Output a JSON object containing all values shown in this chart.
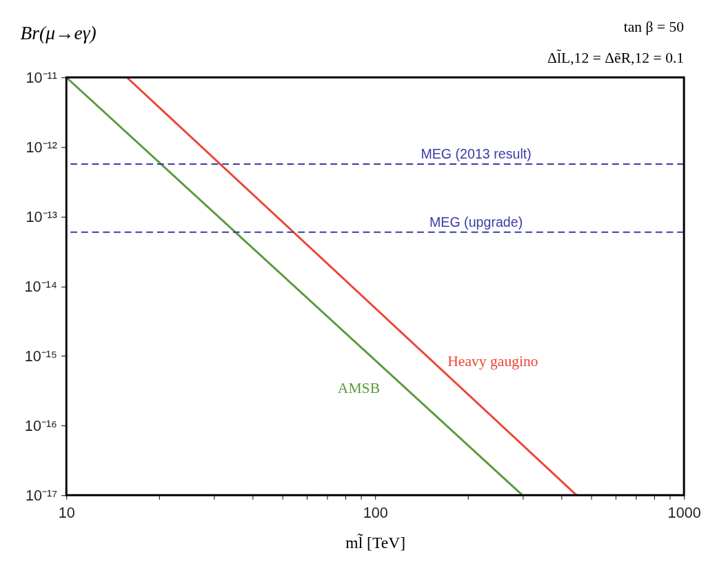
{
  "chart_data": {
    "type": "line",
    "ylabel": "Br(μ→eγ)",
    "xlabel": "ml̃  [TeV]",
    "annotations": [
      "tan β = 50",
      "Δl̃L,12 = ΔẽR,12 = 0.1"
    ],
    "log": "xy",
    "grid": false,
    "legend": false,
    "marker": "none",
    "line_style": "solid",
    "xlim": [
      10,
      1000
    ],
    "xticks": [
      10,
      {
        "value": 20,
        "label": null
      },
      {
        "value": 30,
        "label": null
      },
      {
        "value": 40,
        "label": null
      },
      {
        "value": 50,
        "label": null
      },
      {
        "value": 60,
        "label": null
      },
      {
        "value": 70,
        "label": null
      },
      {
        "value": 80,
        "label": null
      },
      {
        "value": 90,
        "label": null
      },
      100,
      {
        "value": 200,
        "label": null
      },
      {
        "value": 300,
        "label": null
      },
      {
        "value": 400,
        "label": null
      },
      {
        "value": 500,
        "label": null
      },
      {
        "value": 600,
        "label": null
      },
      {
        "value": 700,
        "label": null
      },
      {
        "value": 800,
        "label": null
      },
      {
        "value": 900,
        "label": null
      },
      1000
    ],
    "ylim": [
      1e-17,
      1e-11
    ],
    "yticks": [
      {
        "value": 1e-17,
        "label": "10⁻¹⁷"
      },
      {
        "value": 1e-16,
        "label": "10⁻¹⁶"
      },
      {
        "value": 1e-15,
        "label": "10⁻¹⁵"
      },
      {
        "value": 1e-14,
        "label": "10⁻¹⁴"
      },
      {
        "value": 1e-13,
        "label": "10⁻¹³"
      },
      {
        "value": 1e-12,
        "label": "10⁻¹²"
      },
      {
        "value": 1e-11,
        "label": "10⁻¹¹"
      }
    ],
    "series": [
      {
        "name": "AMSB",
        "color": "#5a9a3a",
        "x": [
          10,
          300
        ],
        "values": [
          1e-11,
          1e-17
        ]
      },
      {
        "name": "Heavy gaugino",
        "color": "#ee4433",
        "x": [
          15.7,
          449
        ],
        "values": [
          1e-11,
          1e-17
        ]
      }
    ],
    "ref_lines": [
      {
        "axis": "y",
        "value": 5.7e-13,
        "label": "MEG (2013 result)",
        "color": "#3a3aa8",
        "line_style": "dashed"
      },
      {
        "axis": "y",
        "value": 6e-14,
        "label": "MEG (upgrade)",
        "color": "#3a3aa8",
        "line_style": "dashed"
      }
    ]
  }
}
